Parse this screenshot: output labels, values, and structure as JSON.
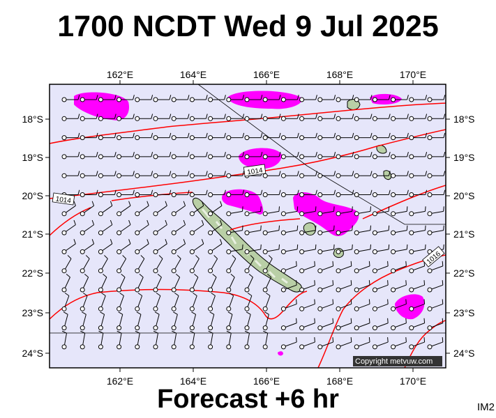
{
  "title": "1700 NCDT Wed 9 Jul 2025",
  "footer": "Forecast +6 hr",
  "corner_label": "IM2",
  "copyright": "Copyright metvuw.com",
  "map": {
    "lon_labels": [
      "162°E",
      "164°E",
      "166°E",
      "168°E",
      "170°E"
    ],
    "lat_labels": [
      "18°S",
      "19°S",
      "20°S",
      "21°S",
      "22°S",
      "23°S",
      "24°S"
    ],
    "isobar_labels": [
      "1014",
      "1014",
      "1016"
    ],
    "colors": {
      "sea": "#e6e6fa",
      "isobar": "#ff0000",
      "wind_highlight": "#ff00ff",
      "land": "#b9cfa6",
      "coast": "#000000"
    },
    "features": [
      "New Caledonia",
      "Loyalty Islands",
      "Vanuatu islands"
    ],
    "layers": [
      "wind barbs",
      "isobars",
      "strong wind shading"
    ]
  }
}
